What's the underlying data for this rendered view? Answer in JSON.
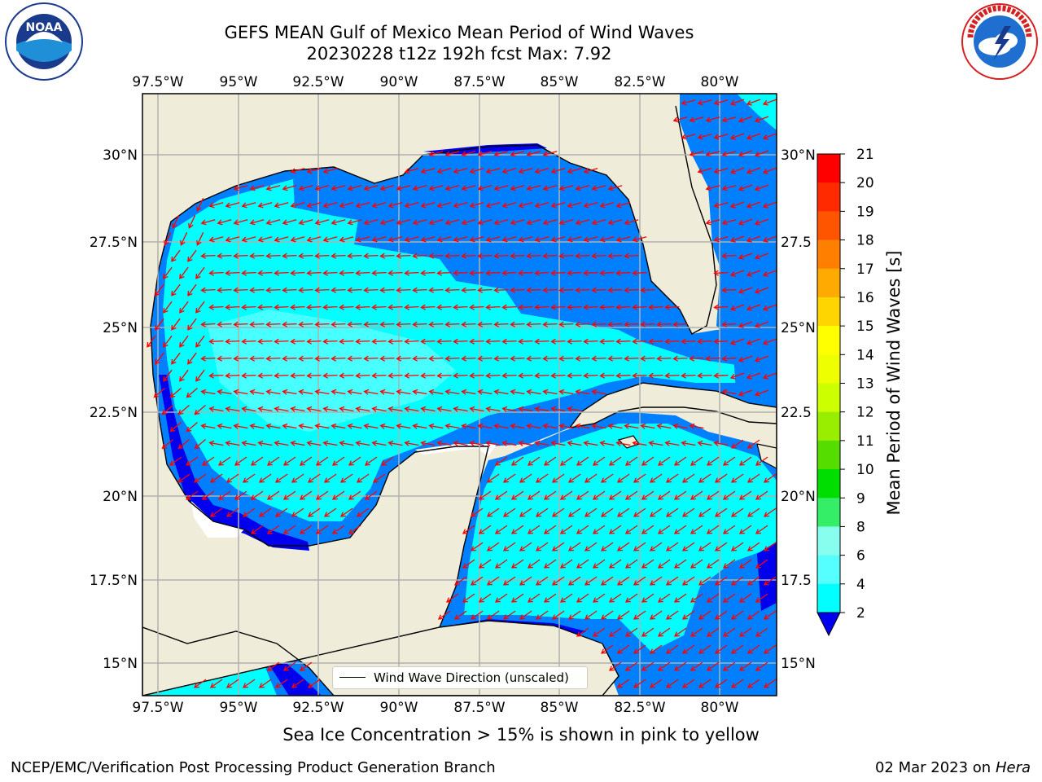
{
  "title": "GEFS MEAN Gulf of Mexico Mean Period of Wind Waves",
  "subtitle": "20230228 t12z 192h fcst   Max: 7.92",
  "longitude_labels": [
    "97.5°W",
    "95°W",
    "92.5°W",
    "90°W",
    "87.5°W",
    "85°W",
    "82.5°W",
    "80°W"
  ],
  "latitude_labels": [
    "30°N",
    "27.5°N",
    "25°N",
    "22.5°N",
    "20°N",
    "17.5°N",
    "15°N"
  ],
  "right_latitude_labels": [
    "30°N",
    "27.5",
    "25°N",
    "22.5",
    "20°N",
    "17.5",
    "15°N"
  ],
  "legend_text": "Wind Wave Direction (unscaled)",
  "colorbar": {
    "label": "Mean Period of Wind Waves [s]",
    "ticks": [
      "21",
      "20",
      "19",
      "18",
      "17",
      "16",
      "15",
      "14",
      "13",
      "12",
      "11",
      "10",
      "9",
      "8",
      "6",
      "4",
      "2"
    ],
    "colors": [
      "#ff0000",
      "#ff2a00",
      "#ff5500",
      "#ff8000",
      "#ffaa00",
      "#ffd500",
      "#ffff00",
      "#eeff00",
      "#ccff00",
      "#99ee00",
      "#55dd00",
      "#00dd00",
      "#33ee66",
      "#88ffee",
      "#55ffff",
      "#00ffff",
      "#0080ff"
    ],
    "extend_color": "#0000ee"
  },
  "colors": {
    "land": "#efedda",
    "cyan": "#00ffff",
    "light_cyan": "#55ffff",
    "blue": "#0080ff",
    "deep_blue": "#0000ee",
    "arrow": "#ff0000",
    "grid": "#b0b0b0"
  },
  "ice_note": "Sea Ice Concentration > 15% is shown in pink to yellow",
  "footer_left": "NCEP/EMC/Verification Post Processing Product Generation Branch",
  "footer_date": "02 Mar 2023 on",
  "footer_host": "Hera",
  "logos": {
    "left": "noaa-logo",
    "right": "national-weather-service-logo"
  },
  "logo_text": {
    "noaa": "NOAA",
    "nws": "NATIONAL WEATHER SERVICE"
  }
}
